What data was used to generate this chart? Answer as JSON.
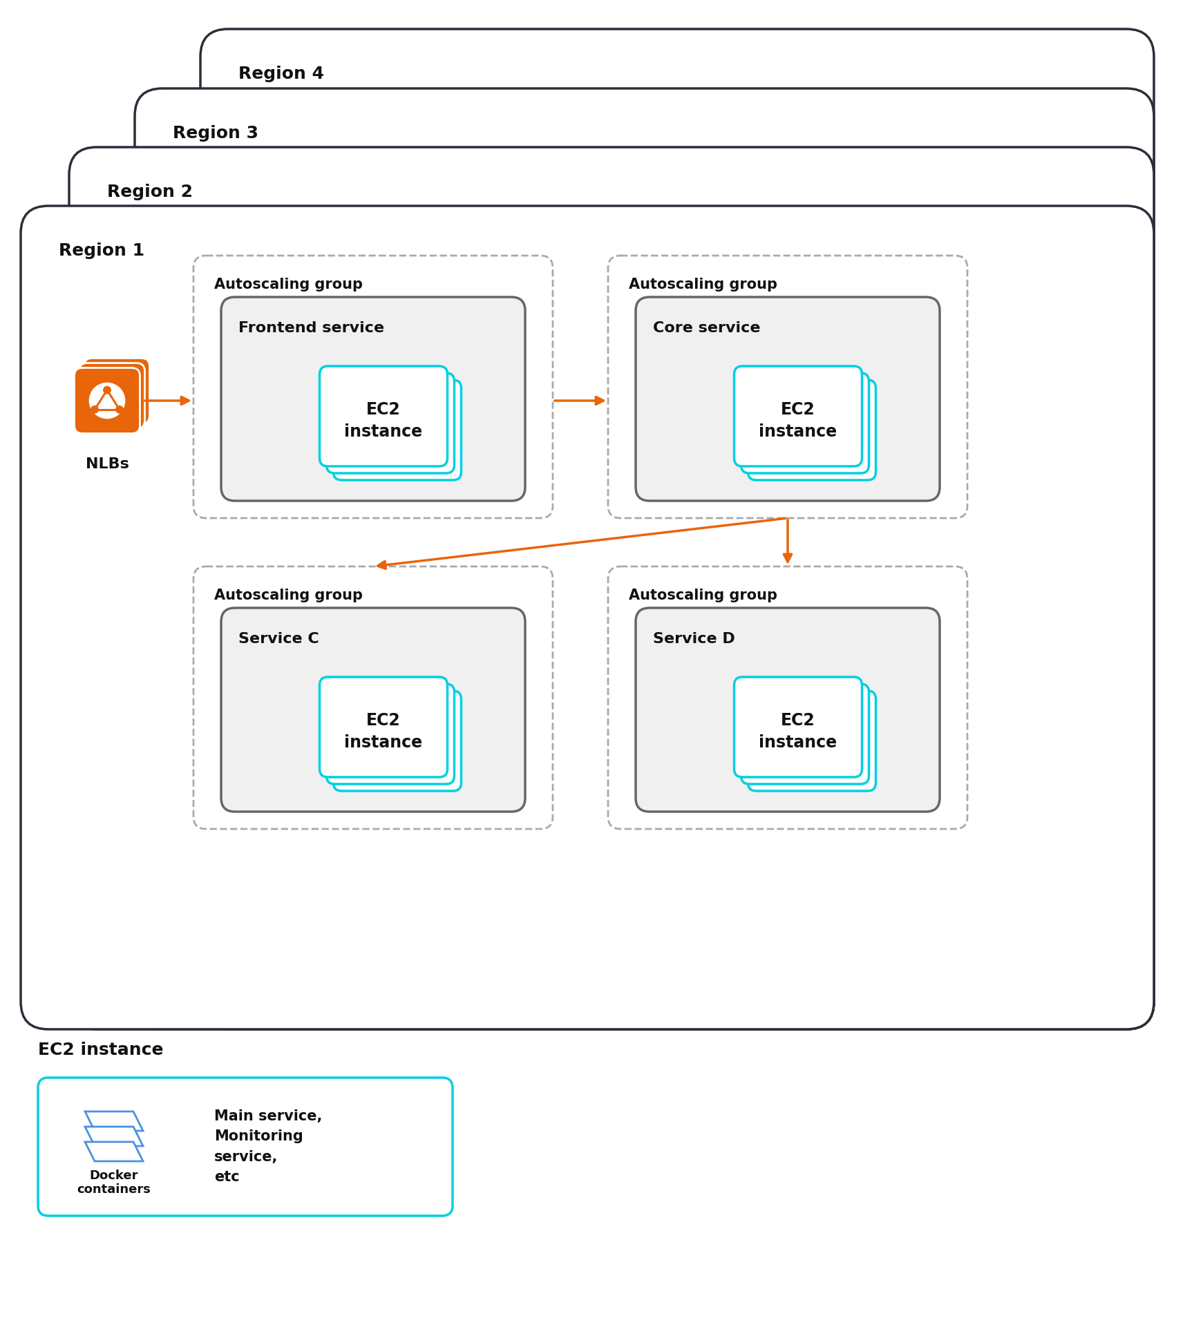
{
  "bg_color": "#ffffff",
  "region_border_color": "#2d2d3a",
  "region_bg_color": "#ffffff",
  "dashed_border_color": "#aaaaaa",
  "service_box_bg": "#f0f0f0",
  "service_box_border": "#666666",
  "ec2_border_color": "#00d0e0",
  "nlb_orange": "#e8650a",
  "nlb_border": "#e8650a",
  "arrow_color": "#e8650a",
  "text_color": "#111111",
  "legend_ec2_border": "#00d0e0",
  "docker_blue": "#4a90e2",
  "regions": [
    "Region 4",
    "Region 3",
    "Region 2",
    "Region 1"
  ],
  "autoscaling_label": "Autoscaling group",
  "top_services": [
    "Frontend service",
    "Core service"
  ],
  "bottom_services": [
    "Service C",
    "Service D"
  ],
  "nlb_label": "NLBs",
  "ec2_legend_title": "EC2 instance",
  "docker_label": "Docker\ncontainers",
  "legend_text": "Main service,\nMonitoring\nservice,\netc"
}
